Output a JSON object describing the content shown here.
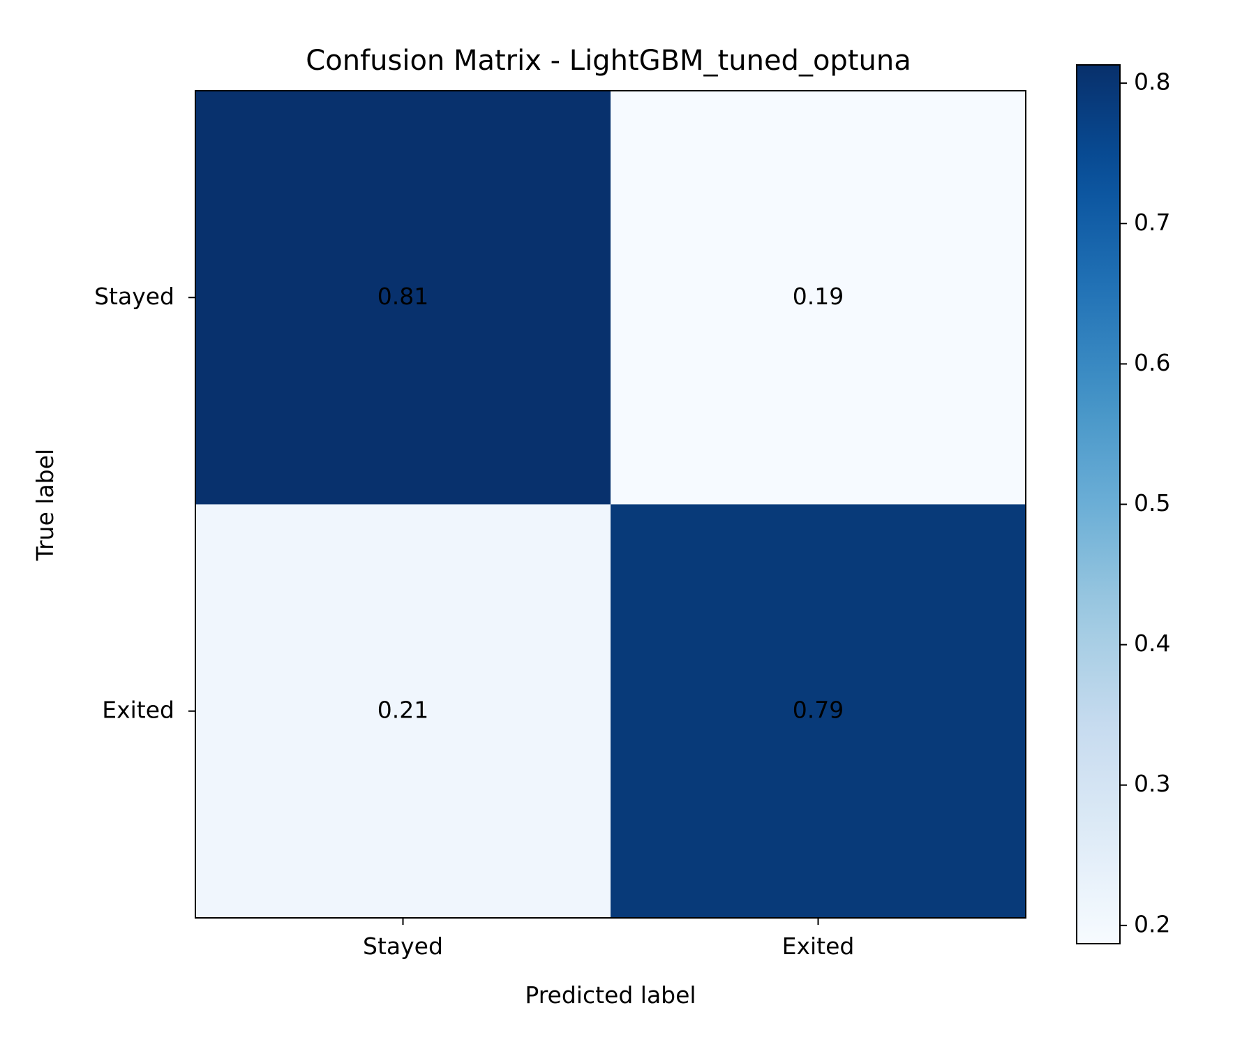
{
  "chart_data": {
    "type": "heatmap",
    "title": "Confusion Matrix - LightGBM_tuned_optuna",
    "xlabel": "Predicted label",
    "ylabel": "True label",
    "x_categories": [
      "Stayed",
      "Exited"
    ],
    "y_categories": [
      "Stayed",
      "Exited"
    ],
    "values": [
      [
        0.81,
        0.19
      ],
      [
        0.21,
        0.79
      ]
    ],
    "value_labels": [
      [
        "0.81",
        "0.19"
      ],
      [
        "0.21",
        "0.79"
      ]
    ],
    "colormap": "Blues",
    "colorbar": {
      "range": [
        0.187,
        0.813
      ],
      "ticks": [
        0.2,
        0.3,
        0.4,
        0.5,
        0.6,
        0.7,
        0.8
      ],
      "tick_labels": [
        "0.2",
        "0.3",
        "0.4",
        "0.5",
        "0.6",
        "0.7",
        "0.8"
      ]
    },
    "grid": false,
    "colors": {
      "text": "#000000",
      "frame": "#000000",
      "background": "#ffffff"
    }
  }
}
